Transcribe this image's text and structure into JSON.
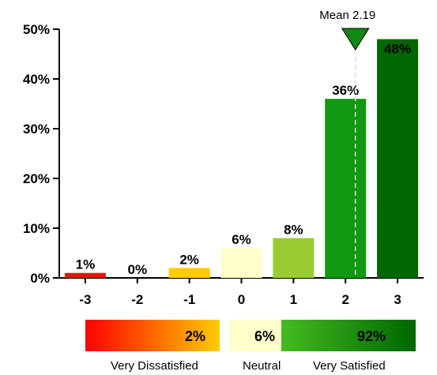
{
  "chart_data": {
    "type": "bar",
    "categories": [
      "-3",
      "-2",
      "-1",
      "0",
      "1",
      "2",
      "3"
    ],
    "values": [
      1,
      0,
      2,
      6,
      8,
      36,
      48
    ],
    "value_labels": [
      "1%",
      "0%",
      "2%",
      "6%",
      "8%",
      "36%",
      "48%"
    ],
    "bar_colors": [
      "#ee1111",
      "#ff8c00",
      "#ffcc00",
      "#ffffcc",
      "#99cc33",
      "#119911",
      "#006600"
    ],
    "ylim": [
      0,
      50
    ],
    "yticks": [
      0,
      10,
      20,
      30,
      40,
      50
    ],
    "ytick_labels": [
      "0%",
      "10%",
      "20%",
      "30%",
      "40%",
      "50%"
    ],
    "mean": {
      "value": 2.19,
      "label": "Mean 2.19",
      "marker_color": "#118811"
    },
    "summary": [
      {
        "label": "2%",
        "category": "Very Dissatisfied",
        "gradient": [
          "#ff0000",
          "#ffcc00"
        ]
      },
      {
        "label": "6%",
        "category": "Neutral",
        "gradient": [
          "#ffffcc",
          "#ffffcc"
        ]
      },
      {
        "label": "92%",
        "category": "Very Satisfied",
        "gradient": [
          "#44bb22",
          "#006600"
        ]
      }
    ]
  }
}
